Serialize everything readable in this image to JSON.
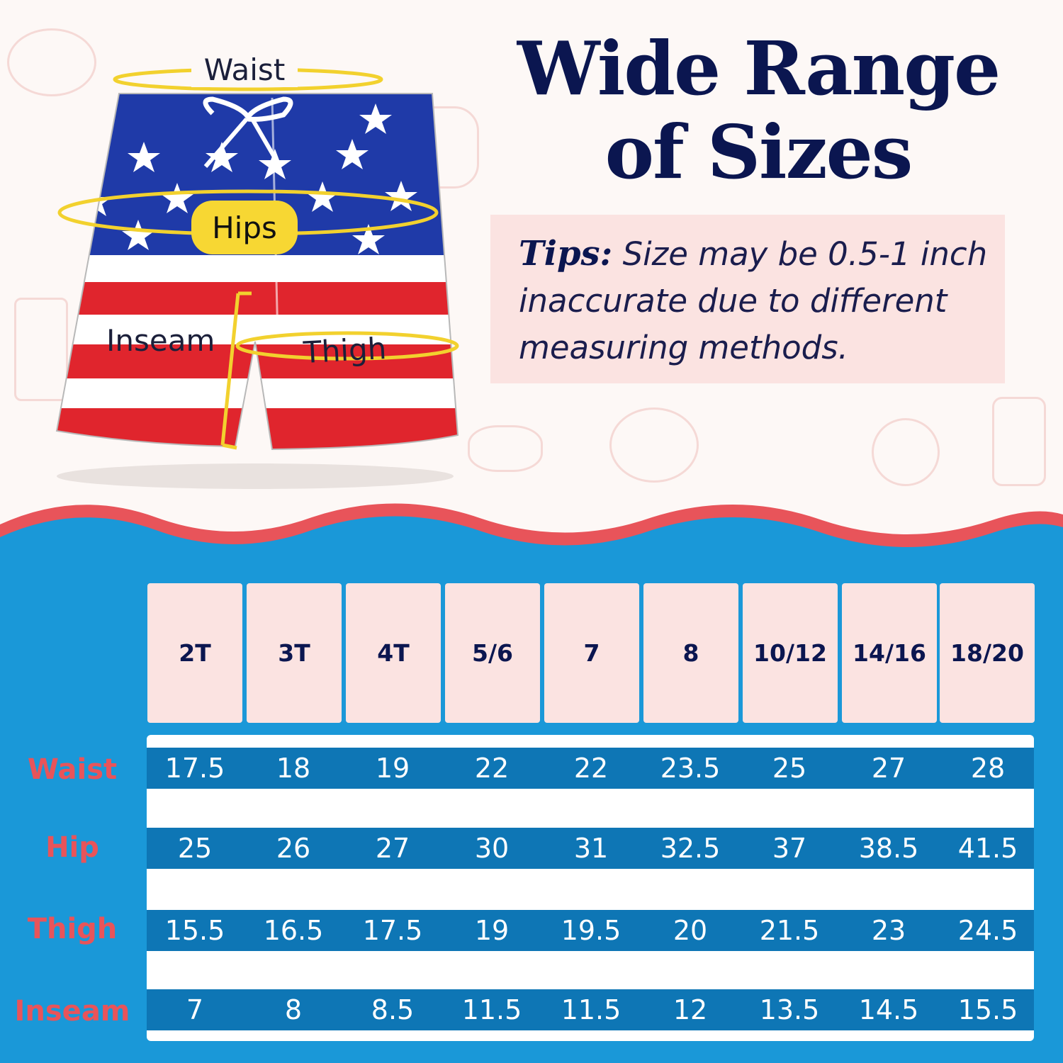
{
  "title_line1": "Wide Range",
  "title_line2": "of Sizes",
  "tips": {
    "label": "Tips:",
    "text": " Size may be 0.5-1 inch inaccurate due to different measuring methods."
  },
  "diagram_labels": {
    "waist": "Waist",
    "hips": "Hips",
    "inseam": "Inseam",
    "thigh": "Thigh"
  },
  "sizes": [
    "2T",
    "3T",
    "4T",
    "5/6",
    "7",
    "8",
    "10/12",
    "14/16",
    "18/20"
  ],
  "rows": [
    {
      "label": "Waist",
      "values": [
        "17.5",
        "18",
        "19",
        "22",
        "22",
        "23.5",
        "25",
        "27",
        "28"
      ]
    },
    {
      "label": "Hip",
      "values": [
        "25",
        "26",
        "27",
        "30",
        "31",
        "32.5",
        "37",
        "38.5",
        "41.5"
      ]
    },
    {
      "label": "Thigh",
      "values": [
        "15.5",
        "16.5",
        "17.5",
        "19",
        "19.5",
        "20",
        "21.5",
        "23",
        "24.5"
      ]
    },
    {
      "label": "Inseam",
      "values": [
        "7",
        "8",
        "8.5",
        "11.5",
        "11.5",
        "12",
        "13.5",
        "14.5",
        "15.5"
      ]
    }
  ],
  "colors": {
    "navy": "#0b1650",
    "table_blue": "#0e76b5",
    "wave_blue": "#1a98d8",
    "wave_coral": "#e8545a",
    "pink": "#fbe3e1",
    "label_red": "#e8545a"
  },
  "icons": [
    "shorts-illustration",
    "wave-divider"
  ]
}
